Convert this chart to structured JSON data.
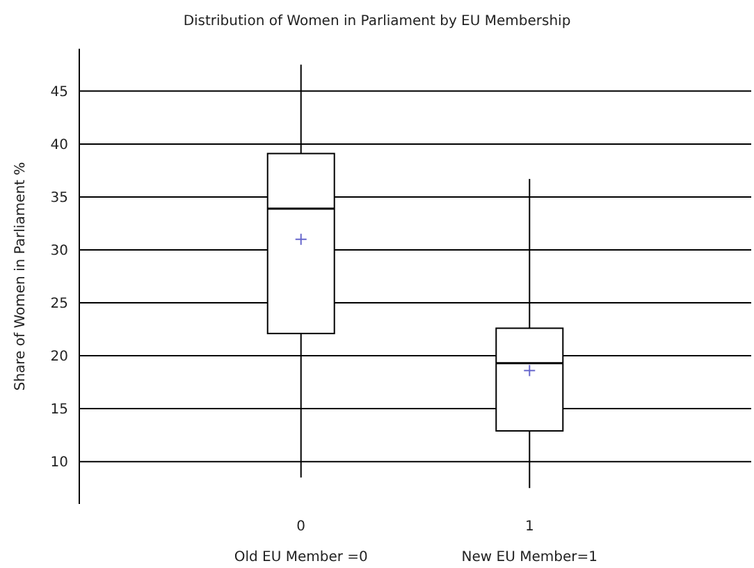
{
  "chart_data": {
    "type": "box",
    "title": "Distribution of Women in Parliament by EU Membership",
    "ylabel": "Share of Women in Parliament %",
    "categories": [
      "0",
      "1"
    ],
    "boxes": [
      {
        "low": 8.5,
        "q1": 22.1,
        "median": 33.9,
        "q3": 39.1,
        "high": 47.5,
        "mean": 31
      },
      {
        "low": 7.5,
        "q1": 12.9,
        "median": 19.3,
        "q3": 22.6,
        "high": 36.7,
        "mean": 18.6
      }
    ],
    "ylim": [
      6,
      49
    ],
    "yticks": [
      10,
      15,
      20,
      25,
      30,
      35,
      40,
      45
    ],
    "grid": "y",
    "annotations": [
      "Old EU Member =0",
      "New EU Member=1"
    ]
  }
}
